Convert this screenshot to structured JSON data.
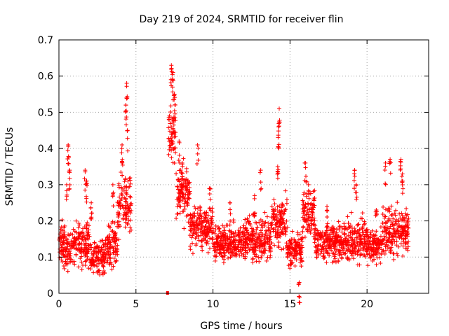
{
  "chart_data": {
    "type": "scatter",
    "title": "Day 219 of 2024, SRMTID for receiver flin",
    "xlabel": "GPS time / hours",
    "ylabel": "SRMTID / TECUs",
    "xlim": [
      0,
      24
    ],
    "ylim": [
      0,
      0.7
    ],
    "xticks": [
      0,
      5,
      10,
      15,
      20
    ],
    "xtick_labels": [
      "0",
      "5",
      "10",
      "15",
      "20"
    ],
    "yticks": [
      0,
      0.1,
      0.2,
      0.3,
      0.4,
      0.5,
      0.6,
      0.7
    ],
    "ytick_labels": [
      "0",
      "0.1",
      "0.2",
      "0.3",
      "0.4",
      "0.5",
      "0.6",
      "0.7"
    ],
    "grid": true,
    "marker": "+",
    "color": "#ff0000",
    "special_points": [
      {
        "x": 7.05,
        "y": 0.0,
        "marker": "square"
      }
    ],
    "series": [
      {
        "name": "SRMTID",
        "segments": [
          {
            "x_start": 0.0,
            "x_end": 1.0,
            "base": 0.13,
            "spread": 0.06,
            "spikes": [
              [
                0.5,
                0.3
              ],
              [
                0.6,
                0.41
              ],
              [
                0.7,
                0.34
              ]
            ]
          },
          {
            "x_start": 1.0,
            "x_end": 2.0,
            "base": 0.14,
            "spread": 0.06,
            "spikes": [
              [
                1.7,
                0.34
              ],
              [
                1.8,
                0.31
              ]
            ]
          },
          {
            "x_start": 2.0,
            "x_end": 3.0,
            "base": 0.1,
            "spread": 0.05,
            "spikes": [
              [
                2.1,
                0.25
              ]
            ]
          },
          {
            "x_start": 3.0,
            "x_end": 3.8,
            "base": 0.13,
            "spread": 0.06,
            "spikes": [
              [
                3.5,
                0.3
              ]
            ]
          },
          {
            "x_start": 3.8,
            "x_end": 4.7,
            "base": 0.25,
            "spread": 0.08,
            "spikes": [
              [
                4.1,
                0.41
              ],
              [
                4.4,
                0.58
              ],
              [
                4.35,
                0.52
              ],
              [
                4.45,
                0.45
              ]
            ]
          },
          {
            "x_start": 7.1,
            "x_end": 7.6,
            "base": 0.45,
            "spread": 0.08,
            "spikes": [
              [
                7.3,
                0.63
              ],
              [
                7.4,
                0.61
              ],
              [
                7.5,
                0.55
              ]
            ]
          },
          {
            "x_start": 7.6,
            "x_end": 8.5,
            "base": 0.28,
            "spread": 0.08,
            "spikes": [
              [
                7.8,
                0.42
              ],
              [
                8.0,
                0.36
              ]
            ]
          },
          {
            "x_start": 8.5,
            "x_end": 10.0,
            "base": 0.18,
            "spread": 0.06,
            "spikes": [
              [
                9.0,
                0.41
              ],
              [
                9.8,
                0.29
              ]
            ]
          },
          {
            "x_start": 10.0,
            "x_end": 12.0,
            "base": 0.14,
            "spread": 0.05,
            "spikes": [
              [
                11.1,
                0.25
              ]
            ]
          },
          {
            "x_start": 12.0,
            "x_end": 13.8,
            "base": 0.15,
            "spread": 0.06,
            "spikes": [
              [
                13.1,
                0.34
              ],
              [
                12.7,
                0.27
              ]
            ]
          },
          {
            "x_start": 13.8,
            "x_end": 14.8,
            "base": 0.2,
            "spread": 0.07,
            "spikes": [
              [
                14.3,
                0.51
              ],
              [
                14.25,
                0.46
              ],
              [
                14.2,
                0.35
              ]
            ]
          },
          {
            "x_start": 14.8,
            "x_end": 15.8,
            "base": 0.12,
            "spread": 0.05,
            "spikes": [
              [
                15.6,
                0.03
              ]
            ]
          },
          {
            "x_start": 15.8,
            "x_end": 16.6,
            "base": 0.22,
            "spread": 0.07,
            "spikes": [
              [
                16.0,
                0.36
              ],
              [
                16.2,
                0.3
              ]
            ]
          },
          {
            "x_start": 16.6,
            "x_end": 18.5,
            "base": 0.14,
            "spread": 0.05,
            "spikes": [
              [
                17.4,
                0.24
              ]
            ]
          },
          {
            "x_start": 18.5,
            "x_end": 20.0,
            "base": 0.15,
            "spread": 0.06,
            "spikes": [
              [
                19.2,
                0.34
              ],
              [
                19.3,
                0.3
              ]
            ]
          },
          {
            "x_start": 20.0,
            "x_end": 21.0,
            "base": 0.13,
            "spread": 0.05,
            "spikes": [
              [
                20.6,
                0.23
              ]
            ]
          },
          {
            "x_start": 21.0,
            "x_end": 22.7,
            "base": 0.17,
            "spread": 0.07,
            "spikes": [
              [
                21.2,
                0.36
              ],
              [
                21.5,
                0.37
              ],
              [
                22.2,
                0.37
              ],
              [
                22.3,
                0.33
              ]
            ]
          }
        ]
      }
    ]
  }
}
